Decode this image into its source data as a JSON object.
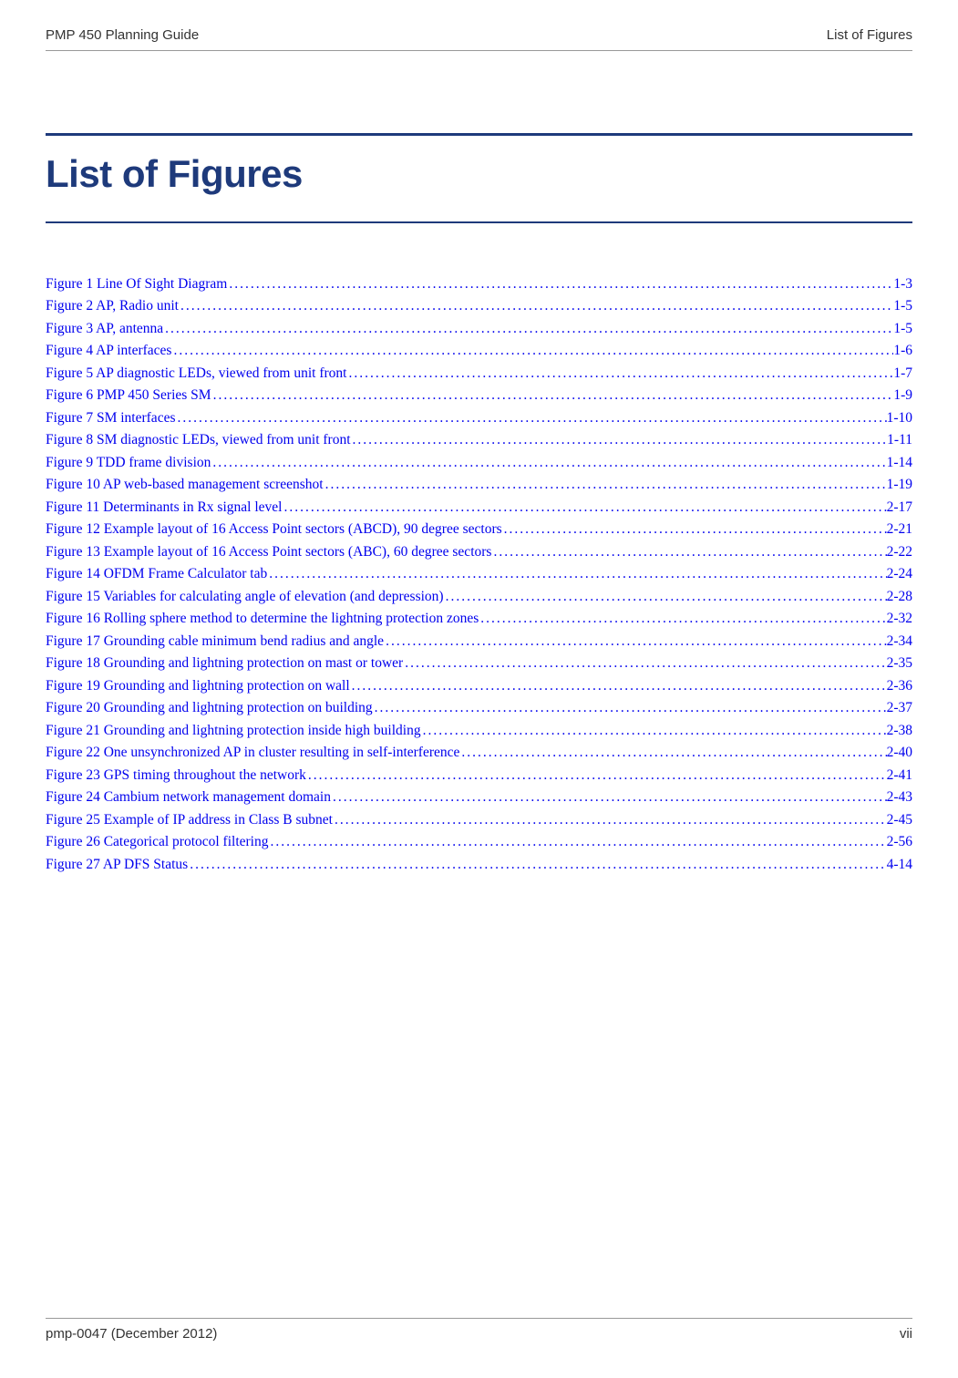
{
  "header": {
    "left": "PMP 450 Planning Guide",
    "right": "List of Figures"
  },
  "title": "List of Figures",
  "figures": [
    {
      "label": "Figure 1  Line Of Sight Diagram",
      "page": "1-3"
    },
    {
      "label": "Figure 2  AP, Radio unit",
      "page": "1-5"
    },
    {
      "label": "Figure 3  AP, antenna",
      "page": "1-5"
    },
    {
      "label": "Figure 4  AP interfaces",
      "page": "1-6"
    },
    {
      "label": "Figure 5  AP diagnostic LEDs, viewed from unit front",
      "page": "1-7"
    },
    {
      "label": "Figure 6  PMP 450 Series SM",
      "page": "1-9"
    },
    {
      "label": "Figure 7  SM interfaces",
      "page": "1-10"
    },
    {
      "label": "Figure 8  SM diagnostic LEDs, viewed from unit front",
      "page": "1-11"
    },
    {
      "label": "Figure 9  TDD frame division",
      "page": "1-14"
    },
    {
      "label": "Figure 10  AP web-based management screenshot",
      "page": "1-19"
    },
    {
      "label": "Figure 11 Determinants in Rx signal level",
      "page": "2-17"
    },
    {
      "label": "Figure 12  Example layout of 16 Access Point sectors (ABCD), 90 degree sectors",
      "page": "2-21"
    },
    {
      "label": "Figure 13  Example layout of 16 Access Point sectors (ABC), 60 degree sectors",
      "page": "2-22"
    },
    {
      "label": "Figure 14  OFDM Frame Calculator tab",
      "page": "2-24"
    },
    {
      "label": "Figure 15  Variables for calculating angle of elevation (and depression)",
      "page": "2-28"
    },
    {
      "label": "Figure 16  Rolling sphere method to determine the lightning protection zones",
      "page": "2-32"
    },
    {
      "label": "Figure 17  Grounding cable minimum bend radius and angle",
      "page": "2-34"
    },
    {
      "label": "Figure 18  Grounding and lightning protection on mast or tower",
      "page": "2-35"
    },
    {
      "label": "Figure 19  Grounding and lightning protection on wall",
      "page": "2-36"
    },
    {
      "label": "Figure 20  Grounding and lightning protection on building",
      "page": "2-37"
    },
    {
      "label": "Figure 21  Grounding and lightning protection inside high building",
      "page": "2-38"
    },
    {
      "label": "Figure 22  One unsynchronized AP in cluster resulting in self-interference",
      "page": "2-40"
    },
    {
      "label": "Figure 23  GPS timing throughout the network",
      "page": "2-41"
    },
    {
      "label": "Figure 24  Cambium network management domain",
      "page": "2-43"
    },
    {
      "label": "Figure 25 Example of IP address in Class B subnet",
      "page": "2-45"
    },
    {
      "label": "Figure 26  Categorical protocol filtering",
      "page": "2-56"
    },
    {
      "label": "Figure 27  AP DFS Status",
      "page": "4-14"
    }
  ],
  "footer": {
    "left": "pmp-0047 (December 2012)",
    "right": "vii"
  },
  "colors": {
    "title_color": "#1e3a7b",
    "link_color": "#0000ee",
    "text_color": "#000000",
    "header_color": "#333333",
    "rule_color": "#999999",
    "background": "#ffffff"
  },
  "typography": {
    "body_font": "Times New Roman",
    "header_font": "Verdana",
    "title_font": "Arial",
    "title_size_pt": 32,
    "body_size_pt": 12,
    "header_size_pt": 11
  }
}
